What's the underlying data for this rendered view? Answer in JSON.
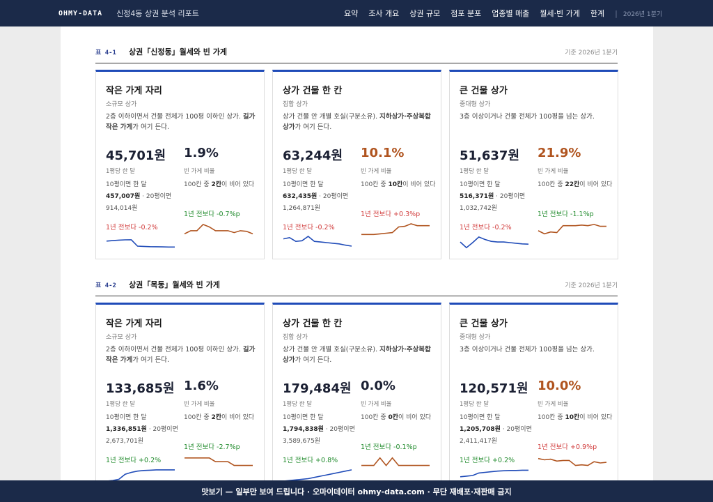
{
  "header": {
    "brand": "OHMY-DATA",
    "subtitle": "신정4동 상권 분석 리포트",
    "nav": [
      "요약",
      "조사 개요",
      "상권 규모",
      "점포 분포",
      "업종별 매출",
      "월세·빈 가게",
      "한계"
    ],
    "period": "2026년 1분기"
  },
  "sections": [
    {
      "num": "표 4-1",
      "title": "상권「신정동」월세와 빈 가게",
      "base": "기준 2026년 1분기",
      "cards": [
        {
          "title": "작은 가게 자리",
          "kind": "소규모 상가",
          "desc_a": "2층 이하이면서 건물 전체가 100평 이하인 상가. ",
          "desc_b": "길가 작은 가게",
          "desc_c": "가 여기 든다.",
          "rent": "45,701원",
          "rent_label": "1평당 한 달",
          "rent_10_pre": "10평이면 한 달",
          "rent_10": "457,007원",
          "rent_20": " · 20평이면 914,014원",
          "rent_change": "1년 전보다 -0.2%",
          "rent_trend": [
            0.62,
            0.66,
            0.7,
            0.72,
            0.73,
            0.22,
            0.2,
            0.18,
            0.17,
            0.16,
            0.15,
            0.15
          ],
          "vacancy": "1.9%",
          "vac_label": "빈 가게 비율",
          "vac_ex_pre": "100칸 중 ",
          "vac_ex_b": "2칸",
          "vac_ex_post": "이 비어 있다",
          "vac_change": "1년 전보다 -0.7%p",
          "vac_trend": [
            0.2,
            0.45,
            0.45,
            0.95,
            0.75,
            0.45,
            0.45,
            0.45,
            0.3,
            0.45,
            0.4,
            0.2
          ]
        },
        {
          "title": "상가 건물 한 칸",
          "kind": "집합 상가",
          "desc_a": "상가 건물 안 개별 호실(구분소유). ",
          "desc_b": "지하상가·주상복합 상가",
          "desc_c": "가 여기 든다.",
          "rent": "63,244원",
          "rent_label": "1평당 한 달",
          "rent_10_pre": "10평이면 한 달",
          "rent_10": "632,435원",
          "rent_20": " · 20평이면 1,264,871원",
          "rent_change": "1년 전보다 -0.2%",
          "rent_trend": [
            0.8,
            0.9,
            0.6,
            0.65,
            1.0,
            0.6,
            0.55,
            0.5,
            0.45,
            0.4,
            0.3,
            0.22
          ],
          "vacancy": "10.1%",
          "vac_label": "빈 가게 비율",
          "vac_ex_pre": "100칸 중 ",
          "vac_ex_b": "10칸",
          "vac_ex_post": "이 비어 있다",
          "vac_change": "1년 전보다 +0.3%p",
          "vac_trend": [
            0.15,
            0.15,
            0.15,
            0.2,
            0.25,
            0.3,
            0.75,
            0.8,
            1.0,
            0.85,
            0.85,
            0.85
          ]
        },
        {
          "title": "큰 건물 상가",
          "kind": "중대형 상가",
          "desc_a": "3층 이상이거나 건물 전체가 100평을 넘는 상가.",
          "desc_b": "",
          "desc_c": "",
          "rent": "51,637원",
          "rent_label": "1평당 한 달",
          "rent_10_pre": "10평이면 한 달",
          "rent_10": "516,371원",
          "rent_20": " · 20평이면 1,032,742원",
          "rent_change": "1년 전보다 -0.2%",
          "rent_trend": [
            0.55,
            0.1,
            0.5,
            0.95,
            0.75,
            0.6,
            0.55,
            0.55,
            0.5,
            0.45,
            0.4,
            0.38
          ],
          "vacancy": "21.9%",
          "vac_label": "빈 가게 비율",
          "vac_ex_pre": "100칸 중 ",
          "vac_ex_b": "22칸",
          "vac_ex_post": "이 비어 있다",
          "vac_change": "1년 전보다 -1.1%p",
          "vac_trend": [
            0.45,
            0.2,
            0.35,
            0.3,
            0.85,
            0.85,
            0.85,
            0.9,
            0.85,
            0.95,
            0.8,
            0.8
          ]
        }
      ]
    },
    {
      "num": "표 4-2",
      "title": "상권「목동」월세와 빈 가게",
      "base": "기준 2026년 1분기",
      "cards": [
        {
          "title": "작은 가게 자리",
          "kind": "소규모 상가",
          "desc_a": "2층 이하이면서 건물 전체가 100평 이하인 상가. ",
          "desc_b": "길가 작은 가게",
          "desc_c": "가 여기 든다.",
          "rent": "133,685원",
          "rent_label": "1평당 한 달",
          "rent_10_pre": "10평이면 한 달",
          "rent_10": "1,336,851원",
          "rent_20": " · 20평이면 2,673,701원",
          "rent_change": "1년 전보다 +0.2%",
          "rent_trend": [
            0.05,
            0.1,
            0.2,
            0.6,
            0.75,
            0.85,
            0.9,
            0.92,
            0.95,
            0.95,
            0.95,
            0.95
          ],
          "vacancy": "1.6%",
          "vac_label": "빈 가게 비율",
          "vac_ex_pre": "100칸 중 ",
          "vac_ex_b": "2칸",
          "vac_ex_post": "이 비어 있다",
          "vac_change": "1년 전보다 -2.7%p",
          "vac_trend": [
            0.9,
            0.9,
            0.9,
            0.9,
            0.9,
            0.6,
            0.6,
            0.6,
            0.3,
            0.3,
            0.3,
            0.3
          ]
        },
        {
          "title": "상가 건물 한 칸",
          "kind": "집합 상가",
          "desc_a": "상가 건물 안 개별 호실(구분소유). ",
          "desc_b": "지하상가·주상복합 상가",
          "desc_c": "가 여기 든다.",
          "rent": "179,484원",
          "rent_label": "1평당 한 달",
          "rent_10_pre": "10평이면 한 달",
          "rent_10": "1,794,838원",
          "rent_20": " · 20평이면 3,589,675원",
          "rent_change": "1년 전보다 +0.8%",
          "rent_trend": [
            0.05,
            0.1,
            0.15,
            0.2,
            0.25,
            0.35,
            0.45,
            0.55,
            0.65,
            0.75,
            0.85,
            0.95
          ],
          "vacancy": "0.0%",
          "vac_label": "빈 가게 비율",
          "vac_ex_pre": "100칸 중 ",
          "vac_ex_b": "0칸",
          "vac_ex_post": "이 비어 있다",
          "vac_change": "1년 전보다 -0.1%p",
          "vac_trend": [
            0.3,
            0.3,
            0.3,
            0.9,
            0.3,
            0.9,
            0.3,
            0.3,
            0.3,
            0.3,
            0.3,
            0.3
          ]
        },
        {
          "title": "큰 건물 상가",
          "kind": "중대형 상가",
          "desc_a": "3층 이상이거나 건물 전체가 100평을 넘는 상가.",
          "desc_b": "",
          "desc_c": "",
          "rent": "120,571원",
          "rent_label": "1평당 한 달",
          "rent_10_pre": "10평이면 한 달",
          "rent_10": "1,205,708원",
          "rent_20": " · 20평이면 2,411,417원",
          "rent_change": "1년 전보다 +0.2%",
          "rent_trend": [
            0.4,
            0.45,
            0.5,
            0.7,
            0.75,
            0.8,
            0.85,
            0.88,
            0.9,
            0.9,
            0.92,
            0.92
          ],
          "vacancy": "10.0%",
          "vac_label": "빈 가게 비율",
          "vac_ex_pre": "100칸 중 ",
          "vac_ex_b": "10칸",
          "vac_ex_post": "이 비어 있다",
          "vac_change": "1년 전보다 +0.9%p",
          "vac_trend": [
            0.85,
            0.75,
            0.8,
            0.65,
            0.7,
            0.7,
            0.3,
            0.35,
            0.3,
            0.6,
            0.5,
            0.55
          ]
        }
      ]
    }
  ],
  "footer": {
    "text": "맛보기 — 일부만 보여 드립니다 · 오마이데이터 ohmy-data.com · 무단 재배포·재판매 금지"
  },
  "colors": {
    "navy": "#1b2a49",
    "accent_blue": "#1f4bb8",
    "orange": "#b0541f",
    "up": "#1f8a2b",
    "down": "#d13b3b"
  }
}
